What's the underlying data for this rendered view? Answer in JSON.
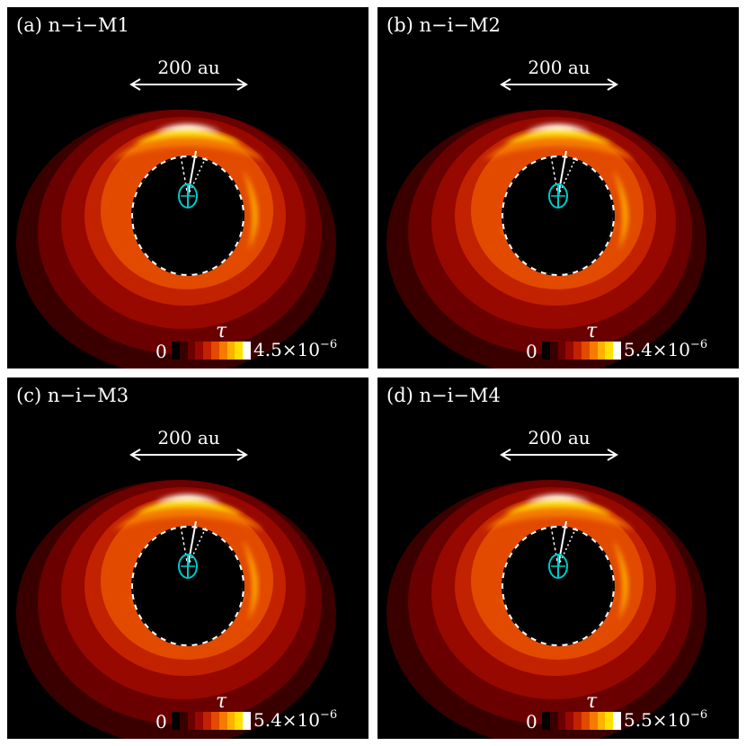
{
  "scale_bar_label": "200 au",
  "tau_label": "τ",
  "colorbar_min": "0",
  "colormap": [
    "#000000",
    "#3a0000",
    "#6a0000",
    "#960800",
    "#c22200",
    "#e24a00",
    "#f47a00",
    "#ffb000",
    "#ffe000",
    "#ffffff"
  ],
  "star_color": "#00c8c8",
  "panels": [
    {
      "label": "(a) n−i−M1",
      "cb_max": "4.5×10",
      "cb_exp": "−6"
    },
    {
      "label": "(b) n−i−M2",
      "cb_max": "5.4×10",
      "cb_exp": "−6"
    },
    {
      "label": "(c) n−i−M3",
      "cb_max": "5.4×10",
      "cb_exp": "−6"
    },
    {
      "label": "(d) n−i−M4",
      "cb_max": "5.5×10",
      "cb_exp": "−6"
    }
  ]
}
